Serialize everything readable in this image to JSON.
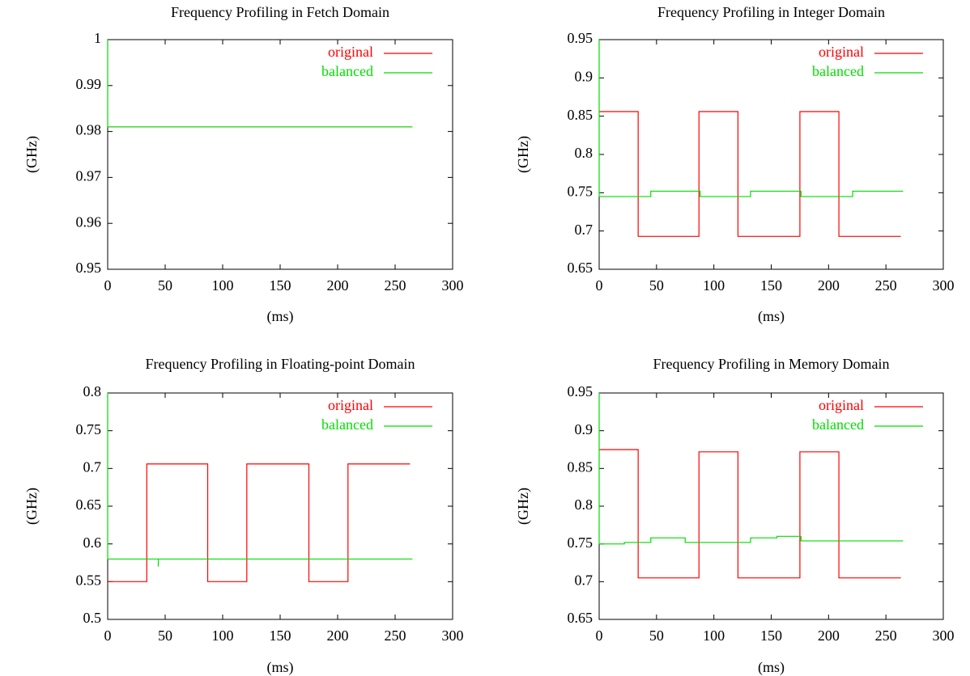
{
  "chart_data": [
    {
      "type": "line",
      "title": "Frequency Profiling in Fetch Domain",
      "x_label": "(ms)",
      "y_label": "(GHz)",
      "xlim": [
        0,
        300
      ],
      "xticks": [
        0,
        50,
        100,
        150,
        200,
        250,
        300
      ],
      "ylim": [
        0.95,
        1
      ],
      "yticks": [
        0.95,
        0.96,
        0.97,
        0.98,
        0.99,
        1
      ],
      "grid": false,
      "legend": "upper right",
      "series": [
        {
          "name": "original",
          "color": "#ff0000",
          "x": [
            0,
            265
          ],
          "values": [
            0.981,
            0.981
          ]
        },
        {
          "name": "balanced",
          "color": "#00dd00",
          "x": [
            0,
            0,
            265
          ],
          "values": [
            1,
            0.981,
            0.981
          ]
        }
      ]
    },
    {
      "type": "line",
      "title": "Frequency Profiling in Integer Domain",
      "x_label": "(ms)",
      "y_label": "(GHz)",
      "xlim": [
        0,
        300
      ],
      "xticks": [
        0,
        50,
        100,
        150,
        200,
        250,
        300
      ],
      "ylim": [
        0.65,
        0.95
      ],
      "yticks": [
        0.65,
        0.7,
        0.75,
        0.8,
        0.85,
        0.9,
        0.95
      ],
      "grid": false,
      "legend": "upper right",
      "series": [
        {
          "name": "original",
          "color": "#ff0000",
          "x": [
            0,
            34,
            34,
            87,
            87,
            121,
            121,
            175,
            175,
            209,
            209,
            263
          ],
          "values": [
            0.856,
            0.856,
            0.693,
            0.693,
            0.856,
            0.856,
            0.693,
            0.693,
            0.856,
            0.856,
            0.693,
            0.693
          ]
        },
        {
          "name": "balanced",
          "color": "#00dd00",
          "x": [
            0,
            0,
            45,
            45,
            88,
            88,
            132,
            132,
            176,
            176,
            221,
            221,
            265
          ],
          "values": [
            0.95,
            0.745,
            0.745,
            0.752,
            0.752,
            0.745,
            0.745,
            0.752,
            0.752,
            0.745,
            0.745,
            0.752,
            0.752
          ]
        }
      ]
    },
    {
      "type": "line",
      "title": "Frequency Profiling in Floating-point Domain",
      "x_label": "(ms)",
      "y_label": "(GHz)",
      "xlim": [
        0,
        300
      ],
      "xticks": [
        0,
        50,
        100,
        150,
        200,
        250,
        300
      ],
      "ylim": [
        0.5,
        0.8
      ],
      "yticks": [
        0.5,
        0.55,
        0.6,
        0.65,
        0.7,
        0.75,
        0.8
      ],
      "grid": false,
      "legend": "upper right",
      "series": [
        {
          "name": "original",
          "color": "#ff0000",
          "x": [
            0,
            34,
            34,
            87,
            87,
            121,
            121,
            175,
            175,
            209,
            209,
            263
          ],
          "values": [
            0.55,
            0.55,
            0.706,
            0.706,
            0.55,
            0.55,
            0.706,
            0.706,
            0.55,
            0.55,
            0.706,
            0.706
          ]
        },
        {
          "name": "balanced",
          "color": "#00dd00",
          "x": [
            0,
            0,
            44,
            44,
            44,
            265
          ],
          "values": [
            0.8,
            0.58,
            0.58,
            0.57,
            0.58,
            0.58
          ]
        }
      ]
    },
    {
      "type": "line",
      "title": "Frequency Profiling in Memory Domain",
      "x_label": "(ms)",
      "y_label": "(GHz)",
      "xlim": [
        0,
        300
      ],
      "xticks": [
        0,
        50,
        100,
        150,
        200,
        250,
        300
      ],
      "ylim": [
        0.65,
        0.95
      ],
      "yticks": [
        0.65,
        0.7,
        0.75,
        0.8,
        0.85,
        0.9,
        0.95
      ],
      "grid": false,
      "legend": "upper right",
      "series": [
        {
          "name": "original",
          "color": "#ff0000",
          "x": [
            0,
            34,
            34,
            87,
            87,
            121,
            121,
            175,
            175,
            209,
            209,
            263
          ],
          "values": [
            0.875,
            0.875,
            0.705,
            0.705,
            0.872,
            0.872,
            0.705,
            0.705,
            0.872,
            0.872,
            0.705,
            0.705
          ]
        },
        {
          "name": "balanced",
          "color": "#00dd00",
          "x": [
            0,
            0,
            22,
            22,
            45,
            45,
            75,
            75,
            132,
            132,
            155,
            155,
            176,
            176,
            265
          ],
          "values": [
            0.95,
            0.75,
            0.75,
            0.752,
            0.752,
            0.758,
            0.758,
            0.752,
            0.752,
            0.758,
            0.758,
            0.76,
            0.76,
            0.754,
            0.754
          ]
        }
      ]
    }
  ]
}
